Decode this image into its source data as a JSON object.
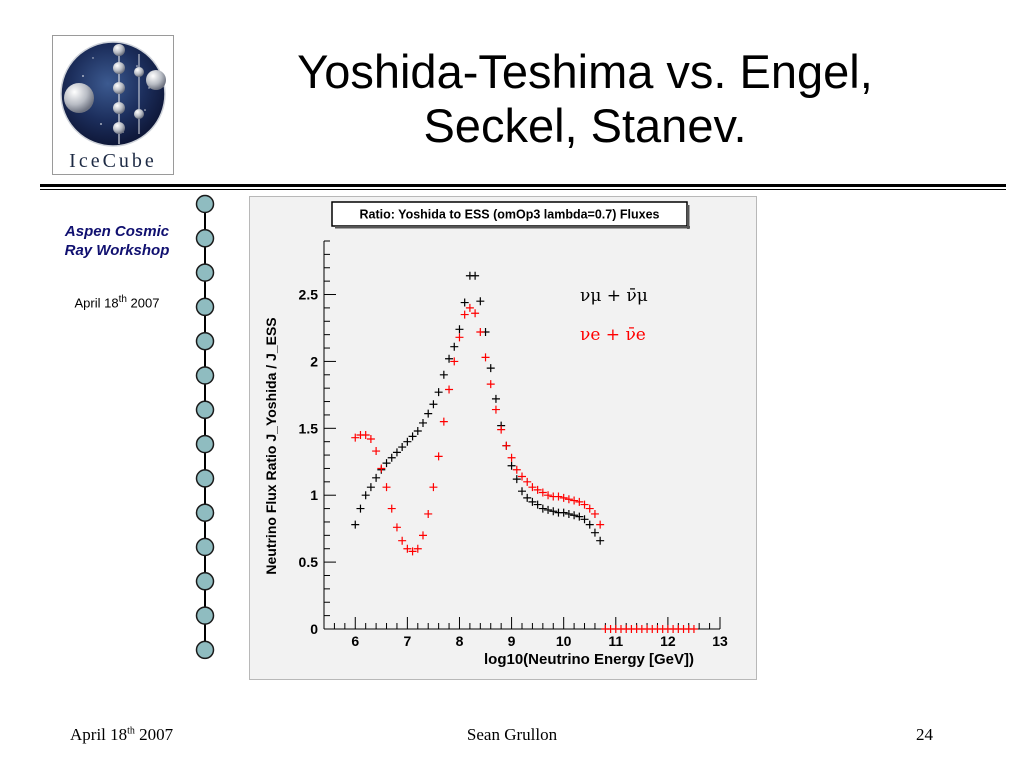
{
  "slide": {
    "title_lines": [
      "Yoshida-Teshima vs. Engel,",
      "Seckel, Stanev."
    ],
    "logo_text": "IceCube",
    "sidebar": {
      "workshop_lines": [
        "Aspen Cosmic",
        "Ray Workshop"
      ],
      "date_prefix": "April 18",
      "date_sup": "th",
      "date_suffix": " 2007"
    },
    "footer": {
      "date_prefix": "April 18",
      "date_sup": "th",
      "date_suffix": " 2007",
      "author": "Sean Grullon",
      "page": "24"
    }
  },
  "chart_data": {
    "type": "scatter",
    "title": "Ratio: Yoshida to ESS (omOp3 lambda=0.7) Fluxes",
    "xlabel": "log10(Neutrino Energy [GeV])",
    "ylabel": "Neutrino Flux Ratio J_Yoshida / J_ESS",
    "xlim": [
      5.4,
      13.0
    ],
    "ylim": [
      0,
      2.9
    ],
    "x_ticks": [
      6,
      7,
      8,
      9,
      10,
      11,
      12,
      13
    ],
    "y_ticks": [
      0,
      0.5,
      1,
      1.5,
      2,
      2.5
    ],
    "grid": false,
    "legend_position": "top-right",
    "colors": {
      "numu": "#000000",
      "nue": "#ff0000"
    },
    "series": [
      {
        "name": "νμ + ν̄μ",
        "color": "#000000",
        "x": [
          6.0,
          6.1,
          6.2,
          6.3,
          6.4,
          6.5,
          6.6,
          6.7,
          6.8,
          6.9,
          7.0,
          7.1,
          7.2,
          7.3,
          7.4,
          7.5,
          7.6,
          7.7,
          7.8,
          7.9,
          8.0,
          8.1,
          8.2,
          8.3,
          8.4,
          8.5,
          8.6,
          8.7,
          8.8,
          8.9,
          9.0,
          9.1,
          9.2,
          9.3,
          9.4,
          9.5,
          9.6,
          9.7,
          9.8,
          9.9,
          10.0,
          10.1,
          10.2,
          10.3,
          10.4,
          10.5,
          10.6,
          10.7
        ],
        "y": [
          0.78,
          0.9,
          1.0,
          1.06,
          1.13,
          1.19,
          1.24,
          1.28,
          1.32,
          1.36,
          1.4,
          1.44,
          1.48,
          1.54,
          1.61,
          1.68,
          1.77,
          1.9,
          2.02,
          2.11,
          2.24,
          2.44,
          2.64,
          2.64,
          2.45,
          2.22,
          1.95,
          1.72,
          1.52,
          1.37,
          1.22,
          1.12,
          1.03,
          0.98,
          0.95,
          0.93,
          0.9,
          0.89,
          0.88,
          0.87,
          0.87,
          0.86,
          0.85,
          0.84,
          0.82,
          0.78,
          0.72,
          0.66
        ]
      },
      {
        "name": "νe + ν̄e",
        "color": "#ff0000",
        "x": [
          6.0,
          6.1,
          6.2,
          6.3,
          6.4,
          6.5,
          6.6,
          6.7,
          6.8,
          6.9,
          7.0,
          7.1,
          7.2,
          7.3,
          7.4,
          7.5,
          7.6,
          7.7,
          7.8,
          7.9,
          8.0,
          8.1,
          8.2,
          8.3,
          8.4,
          8.5,
          8.6,
          8.7,
          8.8,
          8.9,
          9.0,
          9.1,
          9.2,
          9.3,
          9.4,
          9.5,
          9.6,
          9.7,
          9.8,
          9.9,
          10.0,
          10.1,
          10.2,
          10.3,
          10.4,
          10.5,
          10.6,
          10.7,
          10.8,
          10.9,
          11.0,
          11.1,
          11.2,
          11.3,
          11.4,
          11.5,
          11.6,
          11.7,
          11.8,
          11.9,
          12.0,
          12.1,
          12.2,
          12.3,
          12.4,
          12.5
        ],
        "y": [
          1.43,
          1.45,
          1.45,
          1.42,
          1.33,
          1.2,
          1.06,
          0.9,
          0.76,
          0.66,
          0.6,
          0.58,
          0.6,
          0.7,
          0.86,
          1.06,
          1.29,
          1.55,
          1.79,
          2.0,
          2.18,
          2.35,
          2.4,
          2.36,
          2.22,
          2.03,
          1.83,
          1.64,
          1.49,
          1.37,
          1.28,
          1.19,
          1.14,
          1.1,
          1.06,
          1.04,
          1.02,
          1.0,
          0.99,
          0.99,
          0.98,
          0.97,
          0.96,
          0.95,
          0.93,
          0.9,
          0.86,
          0.78,
          0,
          0,
          0,
          0,
          0,
          0,
          0,
          0,
          0,
          0,
          0,
          0,
          0,
          0,
          0,
          0,
          0,
          0
        ]
      }
    ]
  }
}
